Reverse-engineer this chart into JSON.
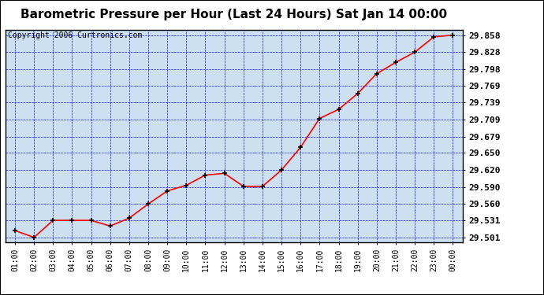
{
  "title": "Barometric Pressure per Hour (Last 24 Hours) Sat Jan 14 00:00",
  "copyright": "Copyright 2006 Curtronics.com",
  "x_labels": [
    "01:00",
    "02:00",
    "03:00",
    "04:00",
    "05:00",
    "06:00",
    "07:00",
    "08:00",
    "09:00",
    "10:00",
    "11:00",
    "12:00",
    "13:00",
    "14:00",
    "15:00",
    "16:00",
    "17:00",
    "18:00",
    "19:00",
    "20:00",
    "21:00",
    "22:00",
    "23:00",
    "00:00"
  ],
  "y_values": [
    29.513,
    29.501,
    29.531,
    29.531,
    29.531,
    29.521,
    29.535,
    29.56,
    29.583,
    29.593,
    29.611,
    29.614,
    29.591,
    29.591,
    29.62,
    29.66,
    29.711,
    29.727,
    29.755,
    29.79,
    29.81,
    29.828,
    29.855,
    29.858
  ],
  "y_ticks": [
    29.501,
    29.531,
    29.56,
    29.59,
    29.62,
    29.65,
    29.679,
    29.709,
    29.739,
    29.769,
    29.798,
    29.828,
    29.858
  ],
  "ylim": [
    29.493,
    29.868
  ],
  "line_color": "red",
  "marker_color": "black",
  "grid_color": "blue",
  "bg_color": "#cce0f0",
  "fig_bg_color": "white",
  "title_fontsize": 11,
  "copyright_fontsize": 7,
  "tick_fontsize": 7,
  "ytick_fontsize": 8
}
